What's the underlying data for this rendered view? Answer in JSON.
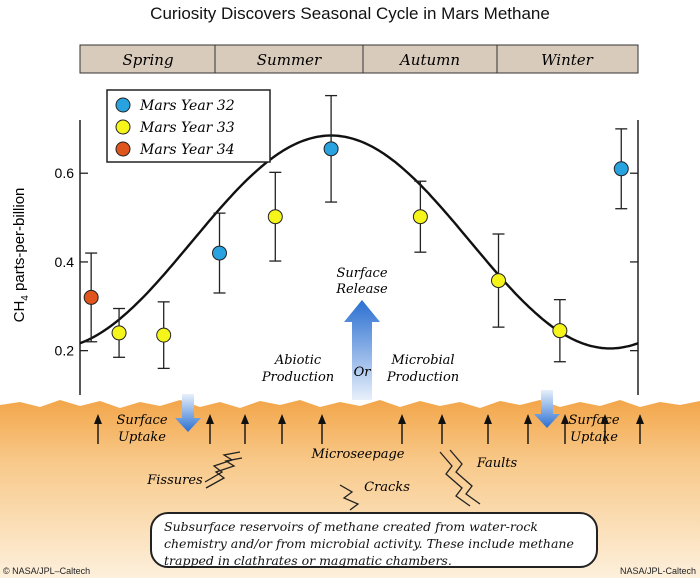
{
  "title": "Curiosity Discovers Seasonal Cycle in Mars Methane",
  "seasons": [
    "Spring",
    "Summer",
    "Autumn",
    "Winter"
  ],
  "legend": [
    {
      "label": "Mars Year 32",
      "color": "#29a3e0"
    },
    {
      "label": "Mars Year 33",
      "color": "#f5f51c"
    },
    {
      "label": "Mars Year 34",
      "color": "#e0541e"
    }
  ],
  "chart_data": {
    "type": "scatter",
    "ylabel_main": "CH",
    "ylabel_sub": "4",
    "ylabel_rest": " parts-per-billion",
    "ytick_labels": [
      "0.6",
      "0.4",
      "0.2"
    ],
    "yticks": [
      0.6,
      0.4,
      0.2
    ],
    "ylim": [
      0.1,
      0.72
    ],
    "xlim": [
      0,
      1
    ],
    "points": [
      {
        "x": 0.02,
        "y": 0.32,
        "err": 0.1,
        "year": 34
      },
      {
        "x": 0.07,
        "y": 0.24,
        "err": 0.055,
        "year": 33
      },
      {
        "x": 0.15,
        "y": 0.235,
        "err": 0.075,
        "year": 33
      },
      {
        "x": 0.25,
        "y": 0.42,
        "err": 0.09,
        "year": 32
      },
      {
        "x": 0.35,
        "y": 0.502,
        "err": 0.1,
        "year": 33
      },
      {
        "x": 0.45,
        "y": 0.655,
        "err": 0.12,
        "year": 32
      },
      {
        "x": 0.61,
        "y": 0.502,
        "err": 0.08,
        "year": 33
      },
      {
        "x": 0.75,
        "y": 0.358,
        "err": 0.105,
        "year": 33
      },
      {
        "x": 0.86,
        "y": 0.245,
        "err": 0.07,
        "year": 33
      },
      {
        "x": 0.97,
        "y": 0.61,
        "err": 0.09,
        "year": 32
      }
    ],
    "fit_curve": "sinusoid"
  },
  "annotations": {
    "surface_release": [
      "Surface",
      "Release"
    ],
    "abiotic": [
      "Abiotic",
      "Production"
    ],
    "or": "Or",
    "microbial": [
      "Microbial",
      "Production"
    ],
    "surface_uptake_left": [
      "Surface",
      "Uptake"
    ],
    "surface_uptake_right": [
      "Surface",
      "Uptake"
    ],
    "microseepage": "Microseepage",
    "fissures": "Fissures",
    "cracks": "Cracks",
    "faults": "Faults"
  },
  "callout": "Subsurface reservoirs of methane created from water-rock chemistry and/or from microbial activity. These include methane trapped in clathrates or magmatic chambers.",
  "credits": {
    "left": "© NASA/JPL–Caltech",
    "right": "NASA/JPL-Caltech"
  }
}
